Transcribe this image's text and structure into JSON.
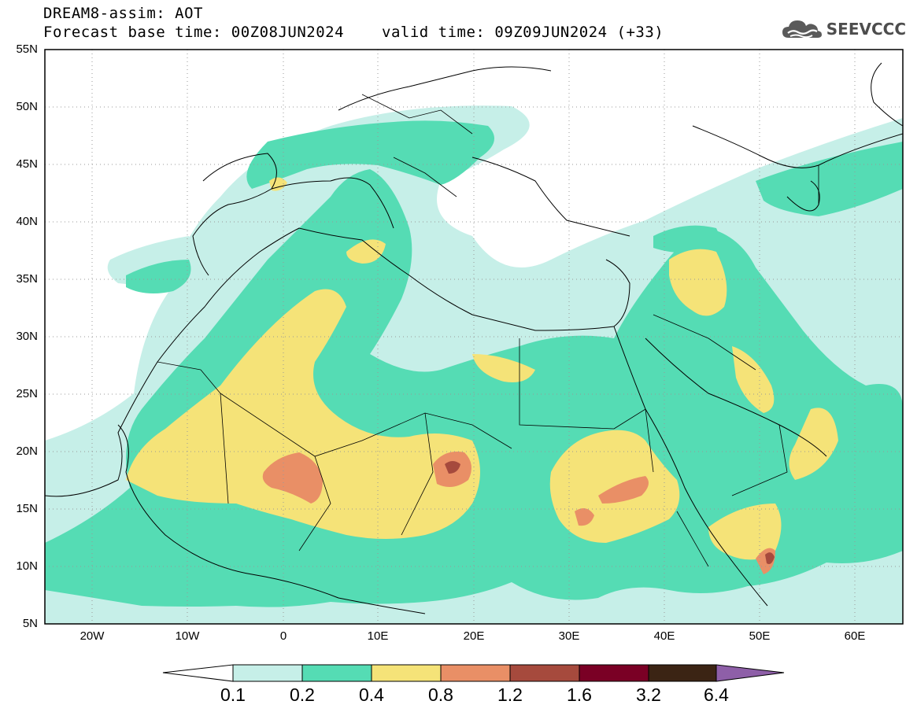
{
  "header": {
    "title_line1": "DREAM8-assim: AOT",
    "base_time": "Forecast base time: 00Z08JUN2024",
    "valid_time": "valid time: 09Z09JUN2024 (+33)"
  },
  "logo": {
    "text": "SEEVCCC",
    "icon": "cloud-icon"
  },
  "map": {
    "variable": "Aerosol optical thickness",
    "lon_range": [
      -25,
      65
    ],
    "lat_range": [
      5,
      55
    ],
    "lat_labels": [
      "55N",
      "50N",
      "45N",
      "40N",
      "35N",
      "30N",
      "25N",
      "20N",
      "15N",
      "10N",
      "5N"
    ],
    "lon_labels": [
      "20W",
      "10W",
      "0",
      "10E",
      "20E",
      "30E",
      "40E",
      "50E",
      "60E"
    ],
    "gridlines": "dotted"
  },
  "colorbar": {
    "labels": [
      "0.1",
      "0.2",
      "0.4",
      "0.8",
      "1.2",
      "1.6",
      "3.2",
      "6.4"
    ],
    "colors": [
      "#ffffff",
      "#c6efe8",
      "#55dcb4",
      "#f5e378",
      "#e98f66",
      "#a64a3d",
      "#7a0025",
      "#3b2414",
      "#8e5fa8"
    ]
  }
}
